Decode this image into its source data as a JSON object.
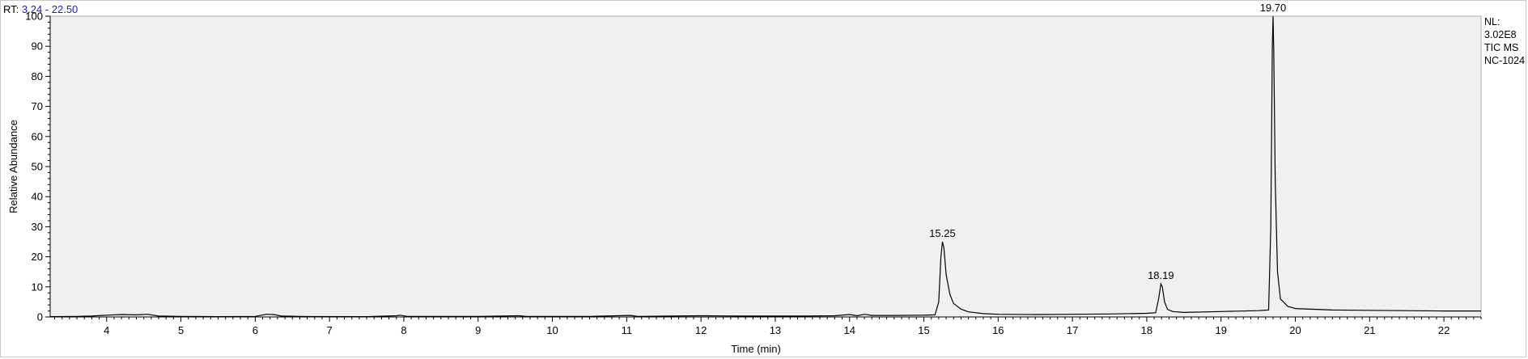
{
  "header": {
    "rt_label": "RT:",
    "rt_range": "3.24 - 22.50"
  },
  "info": {
    "lines": [
      "NL:",
      "3.02E8",
      "TIC  MS",
      "NC-1024"
    ]
  },
  "colors": {
    "plot_bg": "#f0f0f0",
    "trace": "#000000",
    "rt_value": "#1a1ad6"
  },
  "chart_data": {
    "type": "line",
    "title": "",
    "xlabel": "Time (min)",
    "ylabel": "Relative Abundance",
    "xlim": [
      3.24,
      22.5
    ],
    "ylim": [
      0,
      100
    ],
    "x_ticks": [
      4,
      5,
      6,
      7,
      8,
      9,
      10,
      11,
      12,
      13,
      14,
      15,
      16,
      17,
      18,
      19,
      20,
      21,
      22
    ],
    "y_ticks": [
      0,
      10,
      20,
      30,
      40,
      50,
      60,
      70,
      80,
      90,
      100
    ],
    "grid": false,
    "series": [
      {
        "points": [
          [
            3.24,
            0.1
          ],
          [
            3.6,
            0.15
          ],
          [
            3.8,
            0.3
          ],
          [
            4.0,
            0.6
          ],
          [
            4.2,
            0.8
          ],
          [
            4.4,
            0.7
          ],
          [
            4.55,
            0.9
          ],
          [
            4.7,
            0.3
          ],
          [
            5.0,
            0.15
          ],
          [
            5.5,
            0.1
          ],
          [
            6.0,
            0.2
          ],
          [
            6.15,
            0.9
          ],
          [
            6.25,
            0.8
          ],
          [
            6.35,
            0.3
          ],
          [
            6.6,
            0.15
          ],
          [
            7.5,
            0.1
          ],
          [
            7.9,
            0.4
          ],
          [
            7.95,
            0.6
          ],
          [
            8.05,
            0.2
          ],
          [
            9.0,
            0.15
          ],
          [
            9.55,
            0.4
          ],
          [
            9.65,
            0.15
          ],
          [
            10.5,
            0.15
          ],
          [
            11.05,
            0.5
          ],
          [
            11.15,
            0.2
          ],
          [
            11.6,
            0.3
          ],
          [
            12.0,
            0.4
          ],
          [
            12.5,
            0.3
          ],
          [
            13.0,
            0.3
          ],
          [
            13.4,
            0.3
          ],
          [
            13.8,
            0.4
          ],
          [
            14.0,
            0.8
          ],
          [
            14.1,
            0.4
          ],
          [
            14.2,
            0.9
          ],
          [
            14.3,
            0.5
          ],
          [
            14.6,
            0.5
          ],
          [
            15.0,
            0.6
          ],
          [
            15.15,
            0.7
          ],
          [
            15.2,
            5.0
          ],
          [
            15.23,
            20.0
          ],
          [
            15.25,
            25.0
          ],
          [
            15.27,
            23.0
          ],
          [
            15.3,
            14.0
          ],
          [
            15.35,
            7.5
          ],
          [
            15.4,
            4.5
          ],
          [
            15.5,
            2.6
          ],
          [
            15.6,
            1.7
          ],
          [
            15.8,
            1.1
          ],
          [
            16.0,
            0.9
          ],
          [
            16.5,
            0.8
          ],
          [
            17.0,
            0.9
          ],
          [
            17.5,
            1.0
          ],
          [
            18.0,
            1.2
          ],
          [
            18.12,
            1.4
          ],
          [
            18.16,
            6.0
          ],
          [
            18.19,
            11.0
          ],
          [
            18.21,
            10.0
          ],
          [
            18.24,
            5.0
          ],
          [
            18.28,
            2.5
          ],
          [
            18.35,
            1.8
          ],
          [
            18.5,
            1.5
          ],
          [
            19.0,
            1.8
          ],
          [
            19.5,
            2.1
          ],
          [
            19.64,
            2.3
          ],
          [
            19.67,
            30.0
          ],
          [
            19.69,
            90.0
          ],
          [
            19.7,
            100.0
          ],
          [
            19.71,
            88.0
          ],
          [
            19.73,
            45.0
          ],
          [
            19.76,
            15.0
          ],
          [
            19.8,
            6.0
          ],
          [
            19.9,
            3.5
          ],
          [
            20.0,
            2.8
          ],
          [
            20.5,
            2.3
          ],
          [
            21.0,
            2.2
          ],
          [
            21.5,
            2.1
          ],
          [
            22.0,
            2.0
          ],
          [
            22.5,
            2.0
          ]
        ]
      }
    ],
    "annotations": [
      {
        "x": 15.25,
        "y": 25.0,
        "text": "15.25"
      },
      {
        "x": 18.19,
        "y": 11.0,
        "text": "18.19"
      },
      {
        "x": 19.7,
        "y": 100.0,
        "text": "19.70"
      }
    ]
  }
}
